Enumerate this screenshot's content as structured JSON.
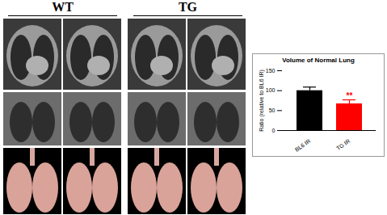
{
  "panels": {
    "groups": [
      "WT",
      "TG"
    ]
  },
  "chart_data": {
    "type": "bar",
    "title": "Volume of Normal Lung",
    "y_label": "Ratio (relative to BL6 IR)",
    "categories": [
      "BL6 IR",
      "TG IR"
    ],
    "values": [
      100,
      67
    ],
    "errors": [
      9,
      10
    ],
    "colors": [
      "#000000",
      "#ff0000"
    ],
    "ylim": [
      0,
      150
    ],
    "yticks": [
      0,
      50,
      100,
      150
    ],
    "annotations": [
      {
        "category": "TG IR",
        "text": "**",
        "color": "#ff0000"
      }
    ]
  }
}
